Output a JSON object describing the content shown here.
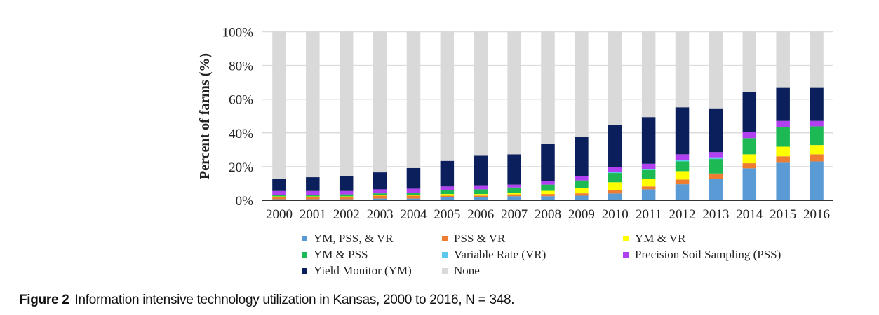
{
  "chart_data": {
    "type": "bar",
    "stacked": true,
    "title": "",
    "xlabel": "",
    "ylabel": "Percent of farms (%)",
    "ylim": [
      0,
      100
    ],
    "yticks": [
      "0%",
      "20%",
      "40%",
      "60%",
      "80%",
      "100%"
    ],
    "ytick_values": [
      0,
      20,
      40,
      60,
      80,
      100
    ],
    "grid": true,
    "legend_position": "bottom",
    "categories": [
      "2000",
      "2001",
      "2002",
      "2003",
      "2004",
      "2005",
      "2006",
      "2007",
      "2008",
      "2009",
      "2010",
      "2011",
      "2012",
      "2013",
      "2014",
      "2015",
      "2016"
    ],
    "series": [
      {
        "name": "YM, PSS, & VR",
        "color": "#5b9bd5",
        "values": [
          0.6,
          0.6,
          0.6,
          1.0,
          1.0,
          1.7,
          2.0,
          2.4,
          2.4,
          2.7,
          4.0,
          6.5,
          9.5,
          12.9,
          19.0,
          22.3,
          23.1
        ]
      },
      {
        "name": "PSS & VR",
        "color": "#ed7d31",
        "values": [
          1.4,
          1.4,
          1.4,
          1.7,
          1.7,
          1.0,
          0.8,
          1.1,
          1.3,
          1.4,
          2.1,
          1.7,
          2.8,
          3.0,
          3.0,
          3.8,
          4.2
        ]
      },
      {
        "name": "YM & VR",
        "color": "#ffff00",
        "values": [
          0.3,
          0.3,
          0.3,
          0.6,
          0.6,
          1.0,
          0.9,
          0.9,
          1.9,
          3.1,
          4.6,
          4.5,
          5.0,
          0.0,
          5.3,
          5.7,
          5.5
        ]
      },
      {
        "name": "YM & PSS",
        "color": "#1db954",
        "values": [
          0.9,
          0.9,
          1.2,
          0.8,
          1.1,
          2.4,
          2.8,
          3.2,
          3.7,
          4.6,
          5.5,
          5.3,
          5.8,
          8.6,
          9.6,
          11.6,
          11.1
        ]
      },
      {
        "name": "Variable Rate (VR)",
        "color": "#5bc8ec",
        "values": [
          0,
          0,
          0,
          0,
          0,
          0,
          0,
          0,
          0,
          0,
          0.6,
          0.7,
          0.7,
          1.0,
          0,
          0,
          0
        ]
      },
      {
        "name": "Precision Soil Sampling (PSS)",
        "color": "#b040f0",
        "values": [
          2.3,
          2.3,
          2.0,
          2.4,
          2.5,
          2.1,
          2.4,
          1.7,
          2.1,
          2.6,
          2.9,
          3.0,
          3.5,
          3.1,
          3.5,
          3.7,
          3.2
        ]
      },
      {
        "name": "Yield Monitor (YM)",
        "color": "#0b1f5c",
        "values": [
          7.3,
          8.2,
          8.9,
          10.1,
          12.3,
          15.2,
          17.5,
          18.0,
          22.1,
          23.2,
          24.9,
          27.7,
          27.9,
          26.0,
          23.9,
          19.6,
          19.6
        ]
      },
      {
        "name": "None",
        "color": "#d9d9d9",
        "values": [
          87.2,
          86.3,
          85.6,
          83.4,
          80.8,
          76.6,
          73.6,
          72.7,
          66.5,
          62.4,
          55.4,
          50.6,
          44.8,
          45.4,
          35.7,
          33.3,
          33.3
        ]
      }
    ]
  },
  "legend": {
    "items": [
      {
        "label": "YM, PSS, & VR",
        "color": "#5b9bd5"
      },
      {
        "label": "PSS & VR",
        "color": "#ed7d31"
      },
      {
        "label": "YM & VR",
        "color": "#ffff00"
      },
      {
        "label": "YM & PSS",
        "color": "#1db954"
      },
      {
        "label": "Variable Rate (VR)",
        "color": "#5bc8ec"
      },
      {
        "label": "Precision Soil Sampling (PSS)",
        "color": "#b040f0"
      },
      {
        "label": "Yield Monitor (YM)",
        "color": "#0b1f5c"
      },
      {
        "label": "None",
        "color": "#d9d9d9"
      }
    ]
  },
  "caption": {
    "figure_label": "Figure 2",
    "text": "Information intensive technology utilization in Kansas, 2000 to 2016, N = 348."
  }
}
